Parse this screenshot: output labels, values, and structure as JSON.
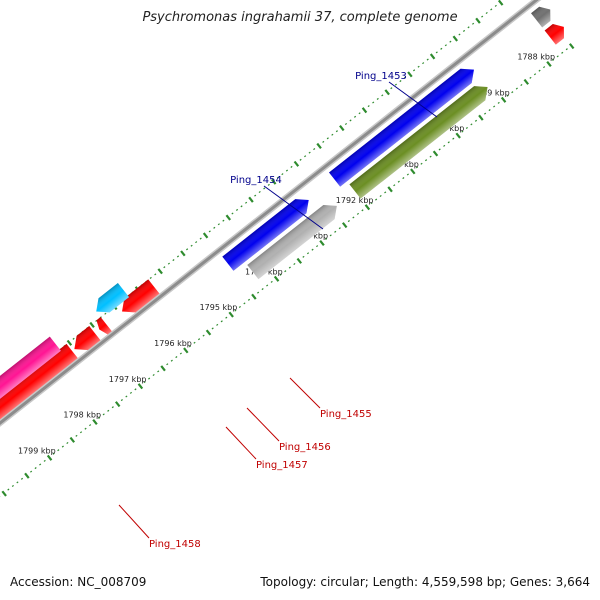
{
  "title": "Psychromonas ingrahamii 37, complete genome",
  "footer": {
    "accession": "Accession: NC_008709",
    "summary": "Topology: circular; Length: 4,559,598 bp; Genes: 3,664"
  },
  "colors": {
    "backbone": "#8c8c8c",
    "tick": "#2e8b2e",
    "label_forward": "#00008b",
    "label_reverse": "#c00000",
    "red": "#ff0000",
    "green": "#6b8e23",
    "blue": "#0000ee",
    "gray": "#b0b0b0",
    "lightblue": "#00bfff",
    "magenta": "#ff1493",
    "darkgray": "#707070"
  },
  "kbp_labels": [
    {
      "text": "1788 kbp",
      "kbp": 1788
    },
    {
      "text": "1789 kbp",
      "kbp": 1789
    },
    {
      "text": "1790 kbp",
      "kbp": 1790
    },
    {
      "text": "1791 kbp",
      "kbp": 1791
    },
    {
      "text": "1792 kbp",
      "kbp": 1792
    },
    {
      "text": "1793 kbp",
      "kbp": 1793
    },
    {
      "text": "1794 kbp",
      "kbp": 1794
    },
    {
      "text": "1795 kbp",
      "kbp": 1795
    },
    {
      "text": "1796 kbp",
      "kbp": 1796
    },
    {
      "text": "1797 kbp",
      "kbp": 1797
    },
    {
      "text": "1798 kbp",
      "kbp": 1798
    },
    {
      "text": "1799 kbp",
      "kbp": 1799
    }
  ],
  "genes": [
    {
      "name": "",
      "start": 1787.4,
      "end": 1787.7,
      "lane": 1,
      "color": "red"
    },
    {
      "name": "",
      "start": 1787.4,
      "end": 1787.7,
      "lane": 0,
      "color": "darkgray"
    },
    {
      "name": "",
      "start": 1789.08,
      "end": 1792.0,
      "lane": 1,
      "color": "green"
    },
    {
      "name": "",
      "start": 1789.08,
      "end": 1792.15,
      "lane": 0,
      "color": "blue"
    },
    {
      "name": "",
      "start": 1792.4,
      "end": 1794.25,
      "lane": 1,
      "color": "gray"
    },
    {
      "name": "",
      "start": 1792.72,
      "end": 1794.5,
      "lane": 0,
      "color": "blue"
    },
    {
      "name": "",
      "start": 1795.75,
      "end": 1796.45,
      "lane": 2,
      "color": "red"
    },
    {
      "name": "",
      "start": 1796.2,
      "end": 1796.8,
      "lane": 3,
      "color": "lightblue"
    },
    {
      "name": "",
      "start": 1796.8,
      "end": 1796.95,
      "lane": 2,
      "color": "red"
    },
    {
      "name": "",
      "start": 1797.05,
      "end": 1797.5,
      "lane": 2,
      "color": "red"
    },
    {
      "name": "",
      "start": 1797.55,
      "end": 1800.65,
      "lane": 2,
      "color": "red"
    },
    {
      "name": "",
      "start": 1797.7,
      "end": 1801.0,
      "lane": 3,
      "color": "magenta"
    },
    {
      "name": "",
      "start": 1800.7,
      "end": 1801.2,
      "lane": 2,
      "color": "red"
    },
    {
      "name": "",
      "start": 1801.05,
      "end": 1801.4,
      "lane": 3,
      "color": "magenta"
    }
  ],
  "gene_labels": [
    {
      "text": "Ping_1453",
      "strand": "forward"
    },
    {
      "text": "Ping_1454",
      "strand": "forward"
    },
    {
      "text": "Ping_1455",
      "strand": "reverse"
    },
    {
      "text": "Ping_1456",
      "strand": "reverse"
    },
    {
      "text": "Ping_1457",
      "strand": "reverse"
    },
    {
      "text": "Ping_1458",
      "strand": "reverse"
    }
  ]
}
